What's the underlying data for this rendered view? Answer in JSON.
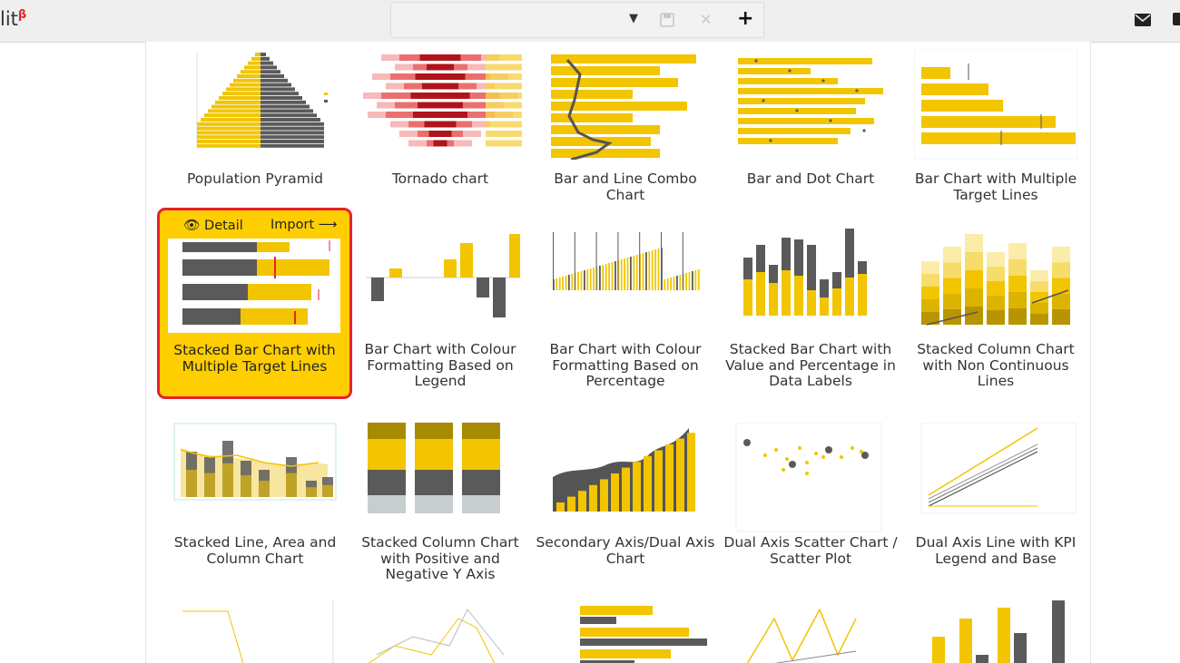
{
  "app": {
    "brand": "lit",
    "brand_sup": "β"
  },
  "toolbar": {
    "icons": [
      "dropdown-caret-icon",
      "save-icon",
      "close-icon",
      "add-icon",
      "mail-icon"
    ]
  },
  "colors": {
    "yellow": "#f2c500",
    "gray": "#5a5a5a",
    "selected_bg": "#fece00",
    "selected_border": "#e8212b"
  },
  "hover_overlay": {
    "detail": "Detail",
    "import": "Import"
  },
  "charts": [
    {
      "name": "Population Pyramid"
    },
    {
      "name": "Tornado chart"
    },
    {
      "name": "Bar and Line Combo Chart"
    },
    {
      "name": "Bar and Dot Chart"
    },
    {
      "name": "Bar Chart with Multiple Target Lines"
    },
    {
      "name": "Stacked Bar Chart with Multiple Target Lines",
      "selected": true
    },
    {
      "name": "Bar Chart with Colour Formatting Based on Legend"
    },
    {
      "name": "Bar Chart with Colour Formatting Based on Percentage"
    },
    {
      "name": "Stacked Bar Chart with Value and Percentage in Data Labels"
    },
    {
      "name": "Stacked Column Chart with Non Continuous Lines"
    },
    {
      "name": "Stacked Line, Area and Column Chart"
    },
    {
      "name": "Stacked Column Chart with Positive and Negative Y Axis"
    },
    {
      "name": "Secondary Axis/Dual Axis Chart"
    },
    {
      "name": "Dual Axis Scatter Chart / Scatter Plot"
    },
    {
      "name": "Dual Axis Line with KPI Legend and Base"
    }
  ]
}
